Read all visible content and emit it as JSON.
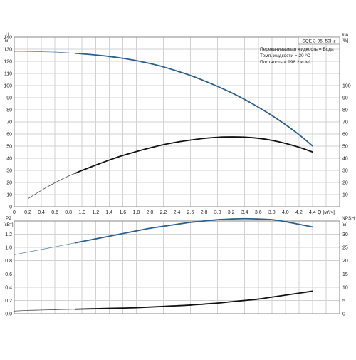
{
  "chart_data": [
    {
      "type": "line",
      "title": "SQE 3-95, 50Hz",
      "annotations": [
        "Перекачиваемая жидкость = Вода",
        "Темп. жидкости = 20 °C",
        "Плотность = 998.2 кг/м³"
      ],
      "left_axis": {
        "label_line1": "H",
        "label_line2": "[м]",
        "range": [
          0,
          140
        ],
        "ticks": [
          "0",
          "10",
          "20",
          "30",
          "40",
          "50",
          "60",
          "70",
          "80",
          "90",
          "100",
          "110",
          "120",
          "130",
          "140"
        ]
      },
      "right_axis": {
        "label_line1": "eta",
        "label_line2": "[%]",
        "range": [
          0,
          140
        ],
        "ticks": [
          "10",
          "20",
          "30",
          "40",
          "50",
          "60",
          "70",
          "80",
          "90",
          "100"
        ]
      },
      "x_axis": {
        "label": "Q [м³/ч]",
        "range": [
          0,
          4.8
        ],
        "ticks": [
          "0",
          "0.2",
          "0.4",
          "0.6",
          "0.8",
          "1.0",
          "1.2",
          "1.4",
          "1.6",
          "1.8",
          "2.0",
          "2.2",
          "2.4",
          "2.6",
          "2.8",
          "3.0",
          "3.2",
          "3.4",
          "3.6",
          "3.8",
          "4.0",
          "4.2",
          "4.4"
        ]
      },
      "grid": true,
      "series": [
        {
          "axis": "left",
          "color": "#2a5f8f",
          "x": [
            0,
            0.2,
            0.4,
            0.6,
            0.8,
            1.0,
            1.2,
            1.4,
            1.6,
            1.8,
            2.0,
            2.2,
            2.4,
            2.6,
            2.8,
            3.0,
            3.2,
            3.4,
            3.6,
            3.8,
            4.0,
            4.2,
            4.4
          ],
          "y": [
            128.2,
            128.1,
            127.9,
            127.6,
            127.0,
            126.2,
            125.2,
            124.0,
            122.5,
            120.6,
            118.2,
            115.4,
            112.0,
            108.3,
            104.0,
            99.3,
            94.2,
            88.5,
            82.2,
            75.3,
            67.8,
            59.5,
            50.2
          ],
          "thin_until": 0.9
        },
        {
          "axis": "right",
          "color": "#111111",
          "x": [
            0.2,
            0.4,
            0.6,
            0.8,
            1.0,
            1.2,
            1.4,
            1.6,
            1.8,
            2.0,
            2.2,
            2.4,
            2.6,
            2.8,
            3.0,
            3.2,
            3.4,
            3.6,
            3.8,
            4.0,
            4.2,
            4.4
          ],
          "y": [
            6.5,
            13.5,
            19.8,
            25.3,
            30.0,
            34.3,
            38.5,
            42.3,
            45.5,
            48.5,
            51.2,
            53.3,
            55.0,
            56.4,
            57.3,
            57.6,
            57.4,
            56.5,
            54.8,
            52.3,
            49.1,
            45.2
          ],
          "thin_until": 0.9
        }
      ]
    },
    {
      "type": "line",
      "left_axis": {
        "label_line1": "P2",
        "label_line2": "[кВт]",
        "range": [
          0,
          1.4
        ],
        "ticks": [
          "0.0",
          "0.2",
          "0.4",
          "0.6",
          "0.8",
          "1.0",
          "1.2"
        ]
      },
      "right_axis": {
        "label_line1": "NPSH",
        "label_line2": "[м]",
        "range": [
          0,
          35
        ],
        "ticks": [
          "0",
          "5",
          "10",
          "15",
          "20",
          "25",
          "30"
        ]
      },
      "x_axis": {
        "range": [
          0,
          4.8
        ]
      },
      "grid": true,
      "series": [
        {
          "axis": "left",
          "color": "#2a5f8f",
          "x": [
            0,
            0.2,
            0.4,
            0.6,
            0.8,
            1.0,
            1.2,
            1.4,
            1.6,
            1.8,
            2.0,
            2.2,
            2.4,
            2.6,
            2.8,
            3.0,
            3.2,
            3.4,
            3.6,
            3.8,
            4.0,
            4.2,
            4.4
          ],
          "y": [
            0.89,
            0.93,
            0.97,
            1.01,
            1.05,
            1.09,
            1.13,
            1.17,
            1.21,
            1.25,
            1.29,
            1.32,
            1.35,
            1.38,
            1.4,
            1.42,
            1.43,
            1.435,
            1.43,
            1.42,
            1.39,
            1.35,
            1.31
          ],
          "thin_until": 0.9
        },
        {
          "axis": "left",
          "color": "#111111",
          "x": [
            0,
            0.2,
            0.4,
            0.6,
            0.8,
            1.0,
            1.2,
            1.4,
            1.6,
            1.8,
            2.0,
            2.2,
            2.4,
            2.6,
            2.8,
            3.0,
            3.2,
            3.4,
            3.6,
            3.8,
            4.0,
            4.2,
            4.4
          ],
          "y": [
            0.04,
            0.05,
            0.055,
            0.06,
            0.065,
            0.07,
            0.075,
            0.08,
            0.085,
            0.09,
            0.1,
            0.11,
            0.12,
            0.13,
            0.145,
            0.16,
            0.18,
            0.2,
            0.22,
            0.25,
            0.28,
            0.31,
            0.34
          ],
          "thin_until": 0.9
        }
      ]
    }
  ]
}
